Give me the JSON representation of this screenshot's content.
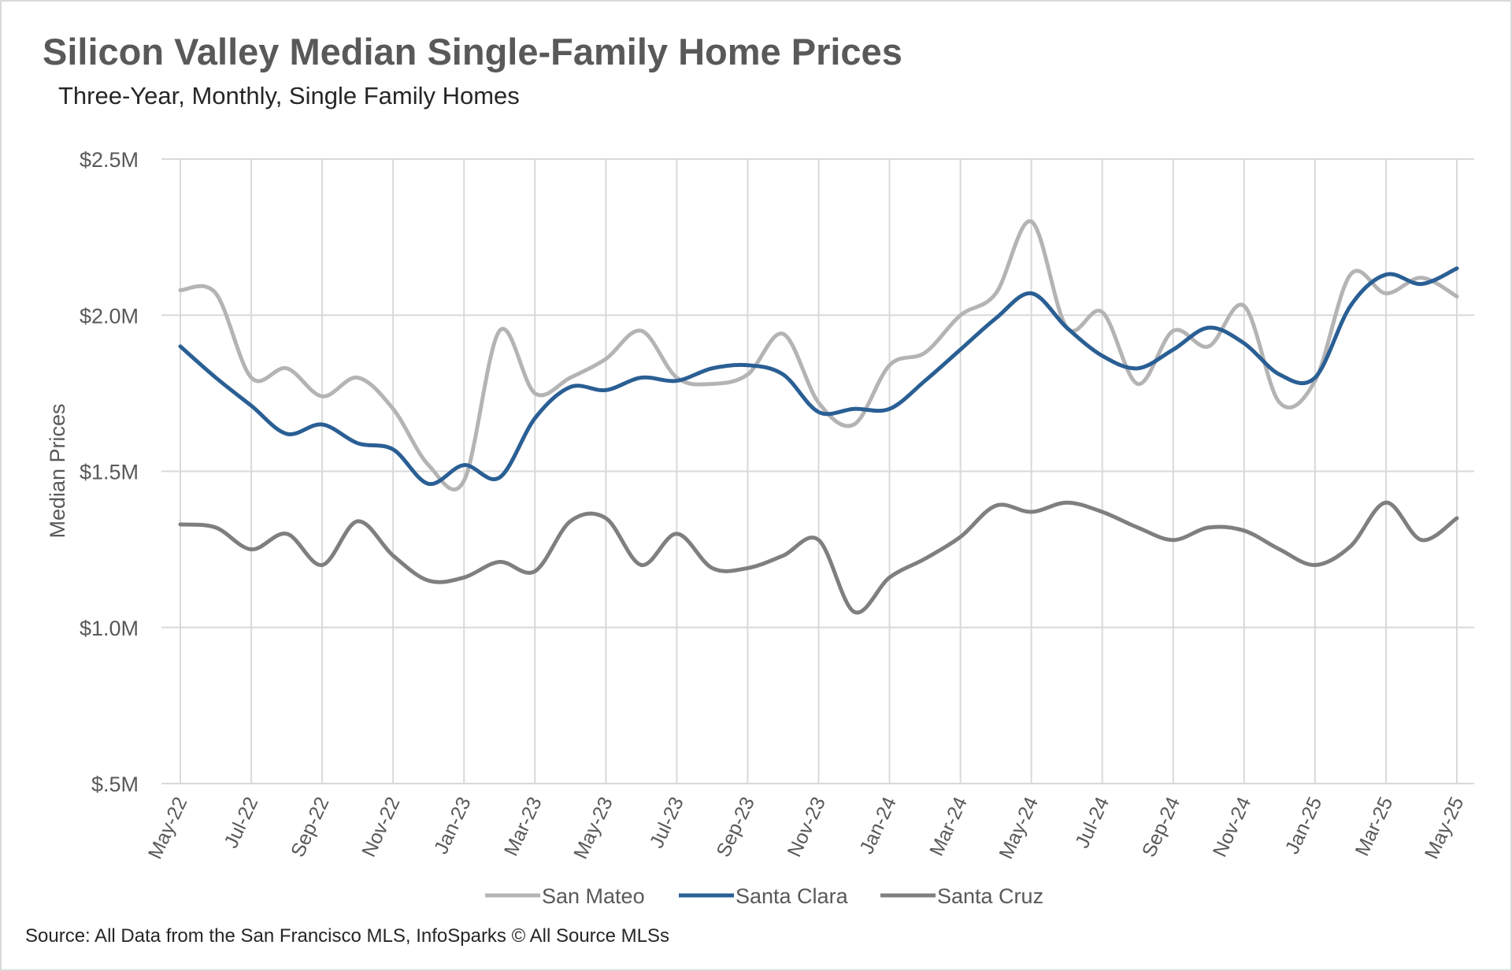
{
  "title": "Silicon Valley Median Single-Family Home Prices",
  "subtitle": "Three-Year, Monthly, Single Family Homes",
  "source": "Source: All Data from the San Francisco MLS, InfoSparks © All Source MLSs",
  "chart_data": {
    "type": "line",
    "ylabel": "Median Prices",
    "xlabel": "",
    "ylim": [
      0.5,
      2.5
    ],
    "y_ticks": [
      {
        "value": 2.5,
        "label": "$2.5M"
      },
      {
        "value": 2.0,
        "label": "$2.0M"
      },
      {
        "value": 1.5,
        "label": "$1.5M"
      },
      {
        "value": 1.0,
        "label": "$1.0M"
      },
      {
        "value": 0.5,
        "label": "$.5M"
      }
    ],
    "grid": true,
    "legend_position": "bottom",
    "x": [
      "May-22",
      "Jun-22",
      "Jul-22",
      "Aug-22",
      "Sep-22",
      "Oct-22",
      "Nov-22",
      "Dec-22",
      "Jan-23",
      "Feb-23",
      "Mar-23",
      "Apr-23",
      "May-23",
      "Jun-23",
      "Jul-23",
      "Aug-23",
      "Sep-23",
      "Oct-23",
      "Nov-23",
      "Dec-23",
      "Jan-24",
      "Feb-24",
      "Mar-24",
      "Apr-24",
      "May-24",
      "Jun-24",
      "Jul-24",
      "Aug-24",
      "Sep-24",
      "Oct-24",
      "Nov-24",
      "Dec-24",
      "Jan-25",
      "Feb-25",
      "Mar-25",
      "Apr-25",
      "May-25"
    ],
    "x_tick_labels": [
      "May-22",
      "Jul-22",
      "Sep-22",
      "Nov-22",
      "Jan-23",
      "Mar-23",
      "May-23",
      "Jul-23",
      "Sep-23",
      "Nov-23",
      "Jan-24",
      "Mar-24",
      "May-24",
      "Jul-24",
      "Sep-24",
      "Nov-24",
      "Jan-25",
      "Mar-25",
      "May-25"
    ],
    "series": [
      {
        "name": "San Mateo",
        "color": "#b4b4b4",
        "values": [
          2.08,
          2.07,
          1.8,
          1.83,
          1.74,
          1.8,
          1.7,
          1.52,
          1.47,
          1.95,
          1.75,
          1.8,
          1.86,
          1.95,
          1.8,
          1.78,
          1.81,
          1.94,
          1.72,
          1.65,
          1.84,
          1.88,
          2.0,
          2.07,
          2.3,
          1.96,
          2.01,
          1.78,
          1.95,
          1.9,
          2.03,
          1.72,
          1.79,
          2.13,
          2.07,
          2.12,
          2.06
        ]
      },
      {
        "name": "Santa Clara",
        "color": "#2a5f94",
        "values": [
          1.9,
          1.8,
          1.71,
          1.62,
          1.65,
          1.59,
          1.57,
          1.46,
          1.52,
          1.48,
          1.67,
          1.77,
          1.76,
          1.8,
          1.79,
          1.83,
          1.84,
          1.81,
          1.69,
          1.7,
          1.7,
          1.79,
          1.89,
          1.99,
          2.07,
          1.96,
          1.87,
          1.83,
          1.89,
          1.96,
          1.91,
          1.81,
          1.8,
          2.03,
          2.13,
          2.1,
          2.15
        ]
      },
      {
        "name": "Santa Cruz",
        "color": "#7f7f7f",
        "values": [
          1.33,
          1.32,
          1.25,
          1.3,
          1.2,
          1.34,
          1.23,
          1.15,
          1.16,
          1.21,
          1.18,
          1.34,
          1.35,
          1.2,
          1.3,
          1.19,
          1.19,
          1.23,
          1.28,
          1.05,
          1.16,
          1.22,
          1.29,
          1.39,
          1.37,
          1.4,
          1.37,
          1.32,
          1.28,
          1.32,
          1.31,
          1.25,
          1.2,
          1.26,
          1.4,
          1.28,
          1.35
        ]
      }
    ]
  }
}
